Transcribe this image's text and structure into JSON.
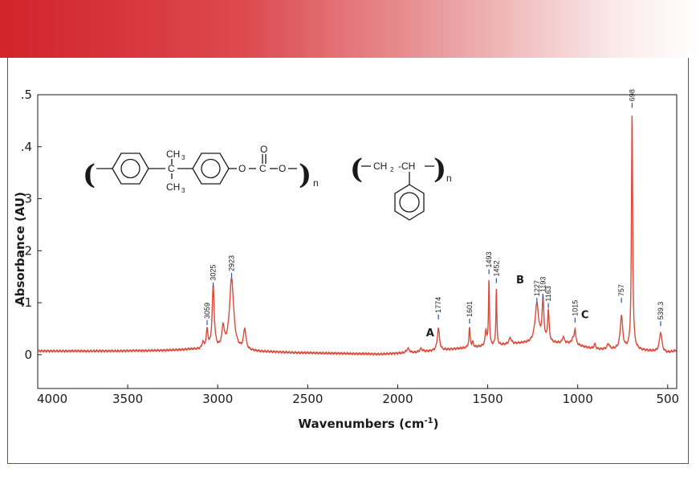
{
  "colors": {
    "header_start": "#d2232a",
    "frame": "#d2232a",
    "spectrum": "#d94a3a",
    "marker": "#2b55a6",
    "text": "#1a1a1a"
  },
  "structures": {
    "polycarbonate": {
      "methyl_top": "CH",
      "methyl_bottom": "CH",
      "methyl_sub": "3",
      "carbon": "C",
      "oxygen1": "O",
      "carbonyl_o": "O",
      "carbonate_c": "C",
      "oxygen2": "O",
      "repeat": "n"
    },
    "polystyrene": {
      "ch2": "CH",
      "ch2_sub": "2",
      "ch": "-CH",
      "repeat": "n"
    }
  },
  "chart_data": {
    "type": "line",
    "title": "",
    "xlabel": "Wavenumbers (cm",
    "xlabel_sup": "-1",
    "xlabel_end": ")",
    "ylabel": "Absorbance (AU)",
    "xlim": [
      4000,
      450
    ],
    "ylim": [
      -0.065,
      0.5
    ],
    "x_reversed": true,
    "grid": false,
    "x_ticks": [
      {
        "value": 4000,
        "label": "4000"
      },
      {
        "value": 3500,
        "label": "3500"
      },
      {
        "value": 3000,
        "label": "3000"
      },
      {
        "value": 2500,
        "label": "2500"
      },
      {
        "value": 2000,
        "label": "2000"
      },
      {
        "value": 1500,
        "label": "1500"
      },
      {
        "value": 1000,
        "label": "1000"
      },
      {
        "value": 500,
        "label": "500"
      }
    ],
    "y_ticks": [
      {
        "value": 0,
        "label": "0"
      },
      {
        "value": 0.1,
        "label": ".1"
      },
      {
        "value": 0.2,
        "label": ".2"
      },
      {
        "value": 0.3,
        "label": ".3"
      },
      {
        "value": 0.4,
        "label": ".4"
      },
      {
        "value": 0.5,
        "label": ".5"
      }
    ],
    "series": [
      {
        "baseline": [
          [
            4000,
            0.007
          ],
          [
            3600,
            0.007
          ],
          [
            3300,
            0.008
          ],
          [
            3150,
            0.01
          ],
          [
            2600,
            0.004
          ],
          [
            2100,
            0.001
          ],
          [
            1900,
            0.004
          ],
          [
            1650,
            0.012
          ],
          [
            1300,
            0.022
          ],
          [
            1050,
            0.022
          ],
          [
            900,
            0.01
          ],
          [
            700,
            0.01
          ],
          [
            500,
            0.004
          ],
          [
            450,
            0.008
          ]
        ],
        "peaks": [
          {
            "x": 3082,
            "h": 0.012,
            "w": 6
          },
          {
            "x": 3059,
            "h": 0.035,
            "w": 6
          },
          {
            "x": 3025,
            "h": 0.12,
            "w": 7
          },
          {
            "x": 2970,
            "h": 0.04,
            "w": 8
          },
          {
            "x": 2923,
            "h": 0.138,
            "w": 14
          },
          {
            "x": 2850,
            "h": 0.04,
            "w": 8
          },
          {
            "x": 1943,
            "h": 0.008,
            "w": 10
          },
          {
            "x": 1870,
            "h": 0.006,
            "w": 10
          },
          {
            "x": 1774,
            "h": 0.043,
            "w": 7
          },
          {
            "x": 1601,
            "h": 0.038,
            "w": 4
          },
          {
            "x": 1583,
            "h": 0.01,
            "w": 4
          },
          {
            "x": 1510,
            "h": 0.03,
            "w": 5
          },
          {
            "x": 1493,
            "h": 0.128,
            "w": 3
          },
          {
            "x": 1452,
            "h": 0.11,
            "w": 3
          },
          {
            "x": 1375,
            "h": 0.012,
            "w": 8
          },
          {
            "x": 1227,
            "h": 0.075,
            "w": 12
          },
          {
            "x": 1193,
            "h": 0.08,
            "w": 6
          },
          {
            "x": 1163,
            "h": 0.06,
            "w": 5
          },
          {
            "x": 1080,
            "h": 0.012,
            "w": 6
          },
          {
            "x": 1028,
            "h": 0.01,
            "w": 5
          },
          {
            "x": 1015,
            "h": 0.03,
            "w": 5
          },
          {
            "x": 905,
            "h": 0.01,
            "w": 6
          },
          {
            "x": 830,
            "h": 0.01,
            "w": 8
          },
          {
            "x": 757,
            "h": 0.064,
            "w": 8
          },
          {
            "x": 698,
            "h": 0.455,
            "w": 4
          },
          {
            "x": 539.3,
            "h": 0.038,
            "w": 8
          }
        ]
      }
    ],
    "peak_labels": [
      {
        "x": 3059,
        "y": 0.057,
        "label": "3059"
      },
      {
        "x": 3025,
        "y": 0.13,
        "label": "3025"
      },
      {
        "x": 2923,
        "y": 0.148,
        "label": "2923"
      },
      {
        "x": 1774,
        "y": 0.068,
        "label": "1774"
      },
      {
        "x": 1601,
        "y": 0.06,
        "label": "1601"
      },
      {
        "x": 1493,
        "y": 0.155,
        "label": "1493"
      },
      {
        "x": 1452,
        "y": 0.138,
        "label": "1452"
      },
      {
        "x": 1227,
        "y": 0.1,
        "label": "1227"
      },
      {
        "x": 1193,
        "y": 0.108,
        "label": "1193"
      },
      {
        "x": 1163,
        "y": 0.09,
        "label": "1163"
      },
      {
        "x": 1015,
        "y": 0.062,
        "label": "1015"
      },
      {
        "x": 757,
        "y": 0.1,
        "label": "757"
      },
      {
        "x": 698,
        "y": 0.475,
        "label": "698"
      },
      {
        "x": 539.3,
        "y": 0.055,
        "label": "539.3"
      }
    ],
    "region_labels": [
      {
        "label": "A",
        "x": 1820,
        "y": 0.035
      },
      {
        "label": "B",
        "x": 1320,
        "y": 0.137
      },
      {
        "label": "C",
        "x": 960,
        "y": 0.07
      }
    ]
  }
}
